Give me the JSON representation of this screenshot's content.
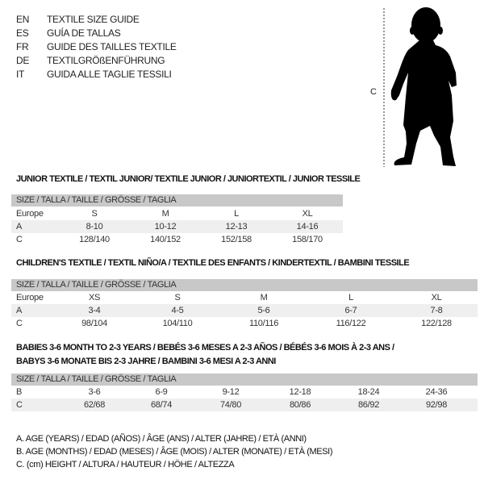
{
  "header": {
    "languages": [
      {
        "code": "EN",
        "title": "TEXTILE SIZE GUIDE"
      },
      {
        "code": "ES",
        "title": "GUÍA DE TALLAS"
      },
      {
        "code": "FR",
        "title": "GUIDE DES TAILLES TEXTILE"
      },
      {
        "code": "DE",
        "title": "TEXTILGRÖßENFÜHRUNG"
      },
      {
        "code": "IT",
        "title": "GUIDA ALLE TAGLIE TESSILI"
      }
    ],
    "figure_label": "C",
    "figure_icon": "child-silhouette-icon"
  },
  "tables": [
    {
      "title": "JUNIOR TEXTILE / TEXTIL JUNIOR/ TEXTILE JUNIOR / JUNIORTEXTIL / JUNIOR TESSILE",
      "header": "SIZE / TALLA / TAILLE / GRÖSSE / TAGLIA",
      "rows": [
        {
          "label": "Europe",
          "values": [
            "S",
            "M",
            "L",
            "XL"
          ]
        },
        {
          "label": "A",
          "values": [
            "8-10",
            "10-12",
            "12-13",
            "14-16"
          ]
        },
        {
          "label": "C",
          "values": [
            "128/140",
            "140/152",
            "152/158",
            "158/170"
          ]
        }
      ]
    },
    {
      "title": "CHILDREN'S TEXTILE / TEXTIL NIÑO/A / TEXTILE DES ENFANTS / KINDERTEXTIL / BAMBINI TESSILE",
      "header": "SIZE / TALLA / TAILLE / GRÖSSE / TAGLIA",
      "rows": [
        {
          "label": "Europe",
          "values": [
            "XS",
            "S",
            "M",
            "L",
            "XL"
          ]
        },
        {
          "label": "A",
          "values": [
            "3-4",
            "4-5",
            "5-6",
            "6-7",
            "7-8"
          ]
        },
        {
          "label": "C",
          "values": [
            "98/104",
            "104/110",
            "110/116",
            "116/122",
            "122/128"
          ]
        }
      ]
    },
    {
      "title": "BABIES 3-6 MONTH TO 2-3 YEARS / BEBÉS 3-6 MESES A 2-3 AÑOS / BÉBÉS 3-6 MOIS À 2-3 ANS /",
      "title2": "BABYS 3-6 MONATE BIS 2-3 JAHRE / BAMBINI 3-6 MESI A 2-3 ANNI",
      "header": "SIZE / TALLA / TAILLE / GRÖSSE / TAGLIA",
      "rows": [
        {
          "label": "B",
          "values": [
            "3-6",
            "6-9",
            "9-12",
            "12-18",
            "18-24",
            "24-36"
          ]
        },
        {
          "label": "C",
          "values": [
            "62/68",
            "68/74",
            "74/80",
            "80/86",
            "86/92",
            "92/98"
          ]
        }
      ]
    }
  ],
  "legend": [
    "A. AGE (YEARS) / EDAD (AÑOS) / ÂGE (ANS) / ALTER (JAHRE) / ETÀ (ANNI)",
    "B. AGE (MONTHS) / EDAD (MESES) / ÂGE (MOIS) / ALTER (MONATE) / ETÀ (MESI)",
    "C. (cm) HEIGHT / ALTURA / HAUTEUR / HÖHE / ALTEZZA"
  ],
  "colors": {
    "header_bg": "#c8c8c8",
    "stripe_bg": "#efefef",
    "text": "#222222"
  }
}
